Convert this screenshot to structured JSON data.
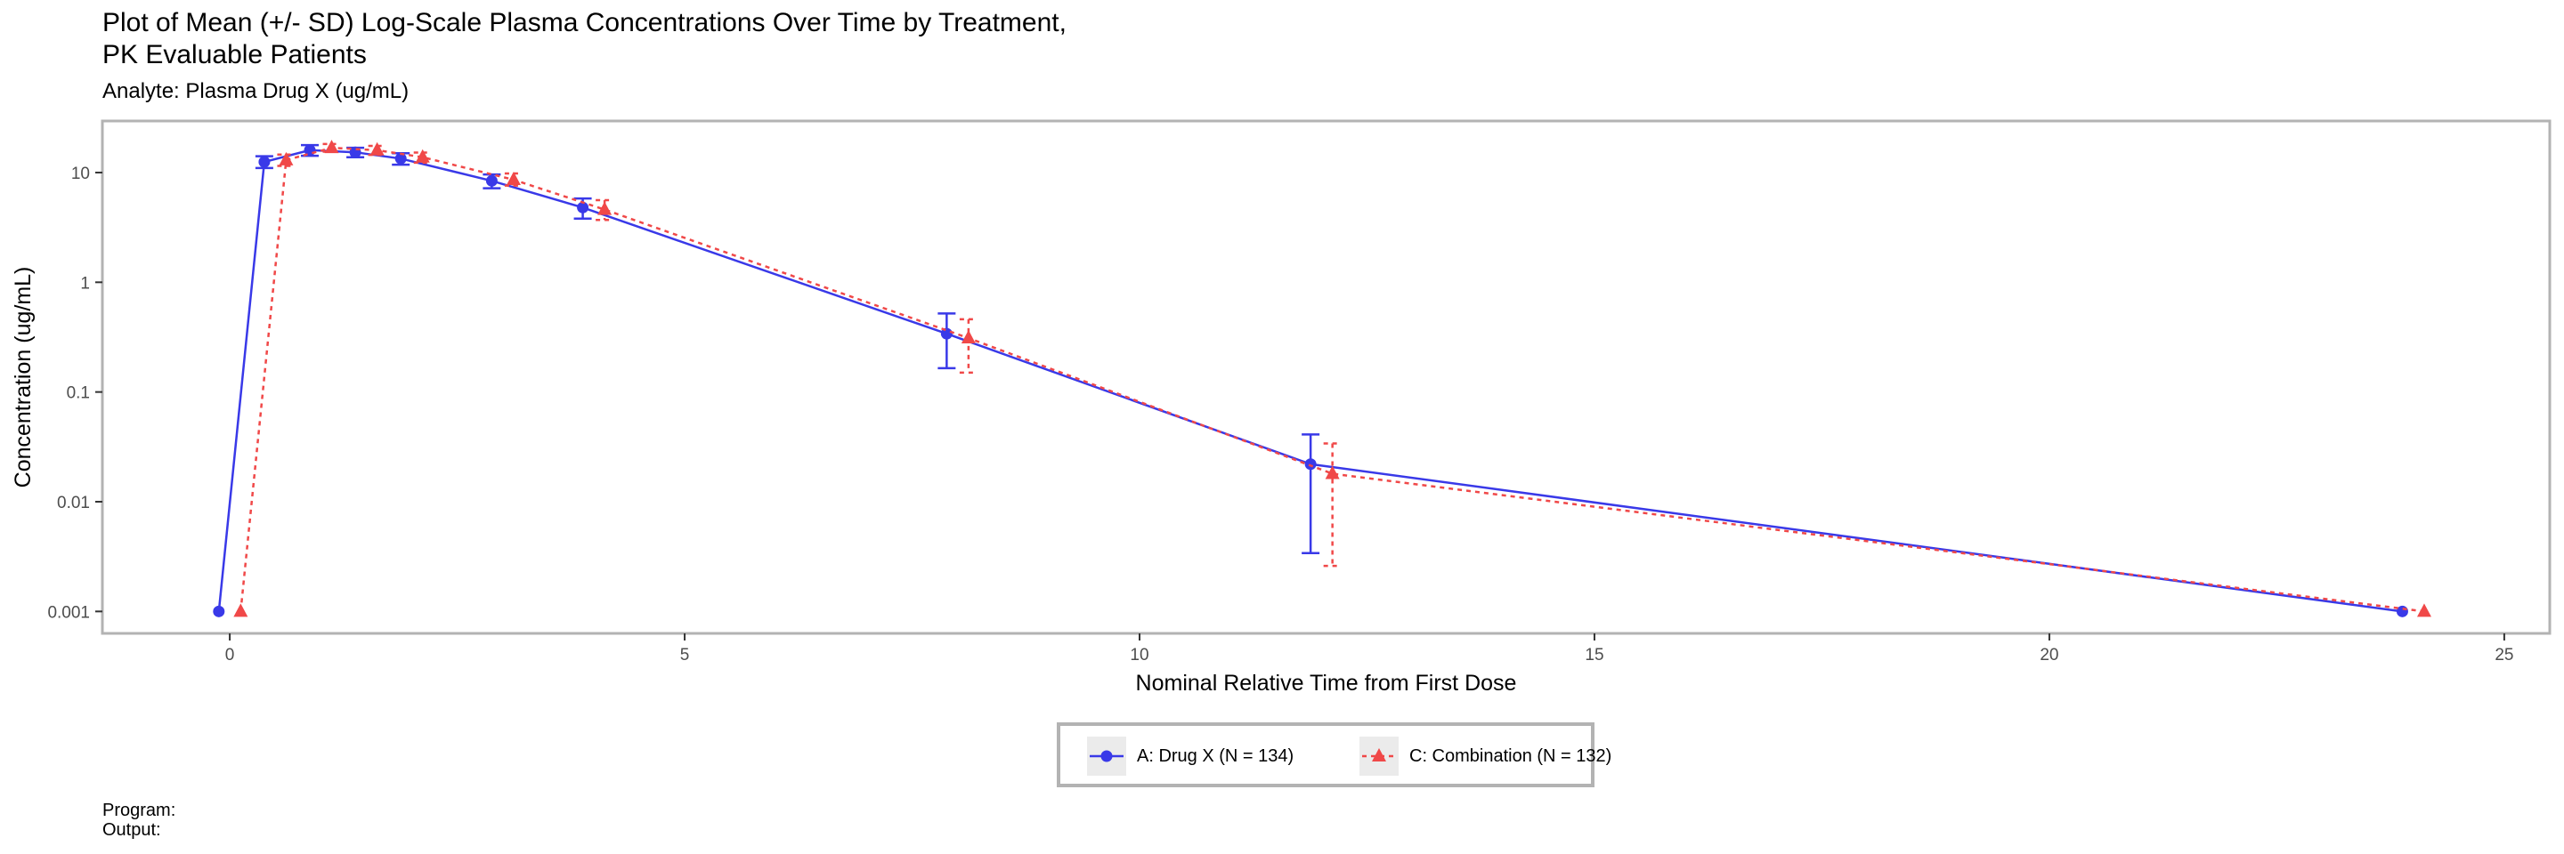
{
  "chart_data": {
    "type": "line",
    "title": "Plot of Mean (+/- SD) Log-Scale Plasma Concentrations Over Time by Treatment,\nPK Evaluable Patients",
    "subtitle": "Analyte: Plasma Drug X (ug/mL)",
    "xlabel": "Nominal Relative Time from First Dose",
    "ylabel": "Concentration (ug/mL)",
    "xlim": [
      -1.4,
      25.5
    ],
    "ylim_log10": [
      -3.2,
      1.47
    ],
    "y_scale": "log10",
    "x_ticks": [
      0,
      5,
      10,
      15,
      20,
      25
    ],
    "x_tick_labels": [
      "0",
      "5",
      "10",
      "15",
      "20",
      "25"
    ],
    "y_ticks": [
      0.001,
      0.01,
      0.1,
      1,
      10
    ],
    "y_tick_labels": [
      "0.001",
      "0.01",
      "0.1",
      "1",
      "10"
    ],
    "grid": false,
    "legend_position": "bottom",
    "series": [
      {
        "name": "A: Drug X (N = 134)",
        "color": "#3939e8",
        "line_style": "solid",
        "marker": "circle",
        "dodge": -0.12,
        "x": [
          0,
          0.5,
          1,
          1.5,
          2,
          3,
          4,
          8,
          12,
          24
        ],
        "y": [
          0.001,
          12.5,
          16.0,
          15.3,
          13.4,
          8.4,
          4.8,
          0.34,
          0.022,
          0.001
        ],
        "sd_low": [
          0.001,
          11.0,
          14.2,
          13.8,
          11.8,
          7.2,
          3.8,
          0.165,
          0.0034,
          0.001
        ],
        "sd_high": [
          0.001,
          14.1,
          17.8,
          16.8,
          15.0,
          9.6,
          5.8,
          0.52,
          0.041,
          0.001
        ]
      },
      {
        "name": "C: Combination (N = 132)",
        "color": "#f04848",
        "line_style": "dashed",
        "marker": "triangle",
        "dodge": 0.12,
        "x": [
          0,
          0.5,
          1,
          1.5,
          2,
          3,
          4,
          8,
          12,
          24
        ],
        "y": [
          0.001,
          13.0,
          16.8,
          16.0,
          13.8,
          8.6,
          4.6,
          0.31,
          0.018,
          0.001
        ],
        "sd_low": [
          0.001,
          11.5,
          15.5,
          14.5,
          12.3,
          7.6,
          3.7,
          0.15,
          0.0026,
          0.001
        ],
        "sd_high": [
          0.001,
          14.6,
          18.2,
          17.5,
          15.2,
          9.8,
          5.6,
          0.46,
          0.034,
          0.001
        ]
      }
    ]
  },
  "footnotes": {
    "program_label": "Program:",
    "output_label": "Output:"
  }
}
